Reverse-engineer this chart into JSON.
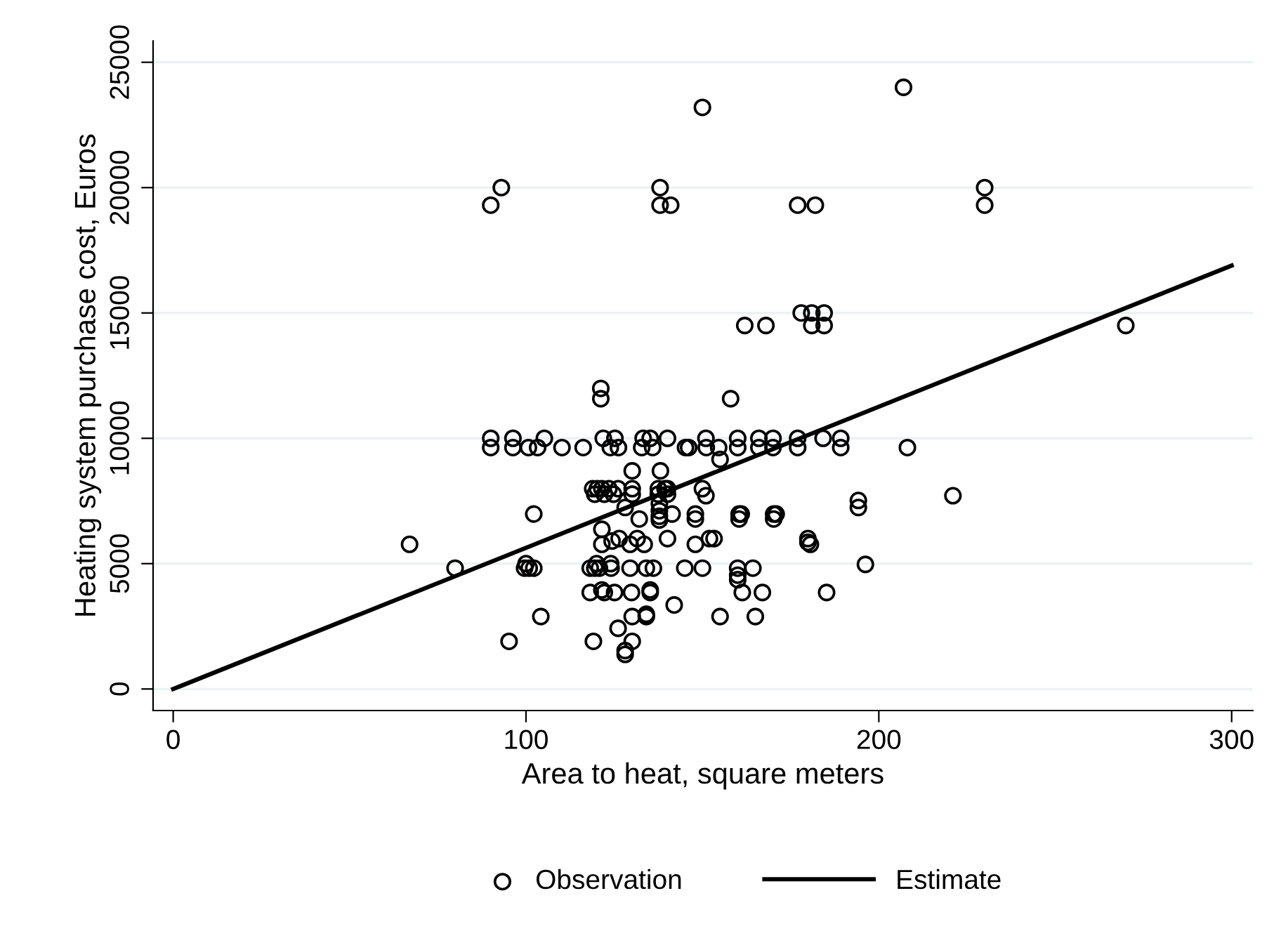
{
  "chart_data": {
    "type": "scatter",
    "xlabel": "Area to heat, square meters",
    "ylabel": "Heating system purchase cost, Euros",
    "xlim": [
      -5.7,
      306
    ],
    "ylim": [
      -860,
      25850
    ],
    "xticks": [
      0,
      100,
      200,
      300
    ],
    "yticks": [
      0,
      5000,
      10000,
      15000,
      20000,
      25000
    ],
    "grid": "y",
    "legend": "bottom",
    "series": [
      {
        "name": "Observation",
        "marker": "circle",
        "color": "#000000",
        "x": [
          90,
          93,
          138,
          138,
          141,
          150,
          177,
          182,
          207,
          230,
          230,
          270,
          178,
          181,
          184.5,
          181,
          184.5,
          162,
          168,
          121.2,
          121.2,
          158,
          90,
          96.3,
          105.2,
          121.9,
          125.2,
          133.2,
          135.2,
          140.1,
          151,
          160,
          166,
          170,
          177,
          184.2,
          189.2,
          90,
          96.3,
          100.7,
          103.3,
          110.2,
          116.2,
          123.9,
          126.2,
          132.8,
          135.9,
          145.2,
          146.1,
          151.1,
          154.6,
          160,
          166,
          170,
          177,
          189.2,
          208.1,
          155,
          150,
          151,
          148,
          148,
          160.4,
          160.4,
          161,
          170.2,
          170.2,
          170.9,
          194.2,
          194.2,
          221,
          148,
          152,
          153.3,
          179.9,
          180.6,
          179.9,
          145,
          150,
          160,
          160,
          160,
          164.3,
          196.2,
          161.3,
          167,
          185.2,
          155,
          165,
          130.1,
          138.1,
          118.9,
          120.2,
          121.5,
          123.5,
          126.1,
          130.1,
          137.5,
          139.4,
          140.1,
          119.5,
          122.2,
          124.8,
          130.1,
          137.5,
          140.1,
          128.1,
          137.8,
          137.8,
          137.8,
          137.8,
          141.4,
          102.2,
          132.1,
          121.5,
          67,
          121.5,
          124.4,
          126.4,
          129.5,
          131.5,
          133.5,
          140.1,
          79.9,
          99.6,
          100.9,
          102.2,
          118.2,
          119.5,
          120.8,
          124.1,
          129.5,
          134.1,
          136.1,
          100,
          120,
          124,
          118.2,
          122.2,
          125.1,
          129.9,
          135.2,
          121.5,
          135.2,
          142,
          104.2,
          130.1,
          134.1,
          134.1,
          126.1,
          95.2,
          119.1,
          130.1,
          128.1,
          128.1
        ],
        "values": [
          19300,
          20000,
          20000,
          19300,
          19300,
          23200,
          19300,
          19300,
          24000,
          20000,
          19300,
          14500,
          15000,
          15000,
          15000,
          14500,
          14500,
          14500,
          14500,
          11990,
          11580,
          11580,
          10000,
          10000,
          10000,
          10000,
          10000,
          10000,
          10000,
          10000,
          10000,
          10000,
          10000,
          10000,
          10000,
          10000,
          10000,
          9630,
          9630,
          9630,
          9630,
          9630,
          9630,
          9630,
          9630,
          9630,
          9630,
          9630,
          9630,
          9630,
          9630,
          9630,
          9630,
          9630,
          9630,
          9630,
          9630,
          9160,
          7990,
          7710,
          6980,
          6780,
          6980,
          6780,
          6980,
          6980,
          6780,
          6980,
          7520,
          7240,
          7710,
          5770,
          6000,
          6000,
          6000,
          5770,
          5850,
          4820,
          4820,
          4820,
          4540,
          4360,
          4820,
          4970,
          3850,
          3850,
          3850,
          2890,
          2890,
          8700,
          8700,
          7990,
          7990,
          7990,
          7990,
          7990,
          7990,
          7990,
          7990,
          7990,
          7770,
          7770,
          7770,
          7770,
          7770,
          7770,
          7240,
          7390,
          7110,
          6890,
          6740,
          6980,
          6980,
          6780,
          6370,
          5770,
          5770,
          5900,
          6000,
          5770,
          6000,
          5770,
          6000,
          4820,
          4820,
          4820,
          4820,
          4820,
          4820,
          4820,
          4820,
          4820,
          4820,
          4820,
          5000,
          5000,
          5000,
          3850,
          3850,
          3850,
          3850,
          3850,
          3950,
          3950,
          3350,
          2890,
          2890,
          2980,
          2890,
          2420,
          1900,
          1900,
          1900,
          1530,
          1380
        ]
      },
      {
        "name": "Estimate",
        "type": "line",
        "marker": "none",
        "line_style": "solid",
        "color": "#000000",
        "x": [
          0,
          300
        ],
        "values": [
          0,
          16890
        ]
      }
    ]
  }
}
